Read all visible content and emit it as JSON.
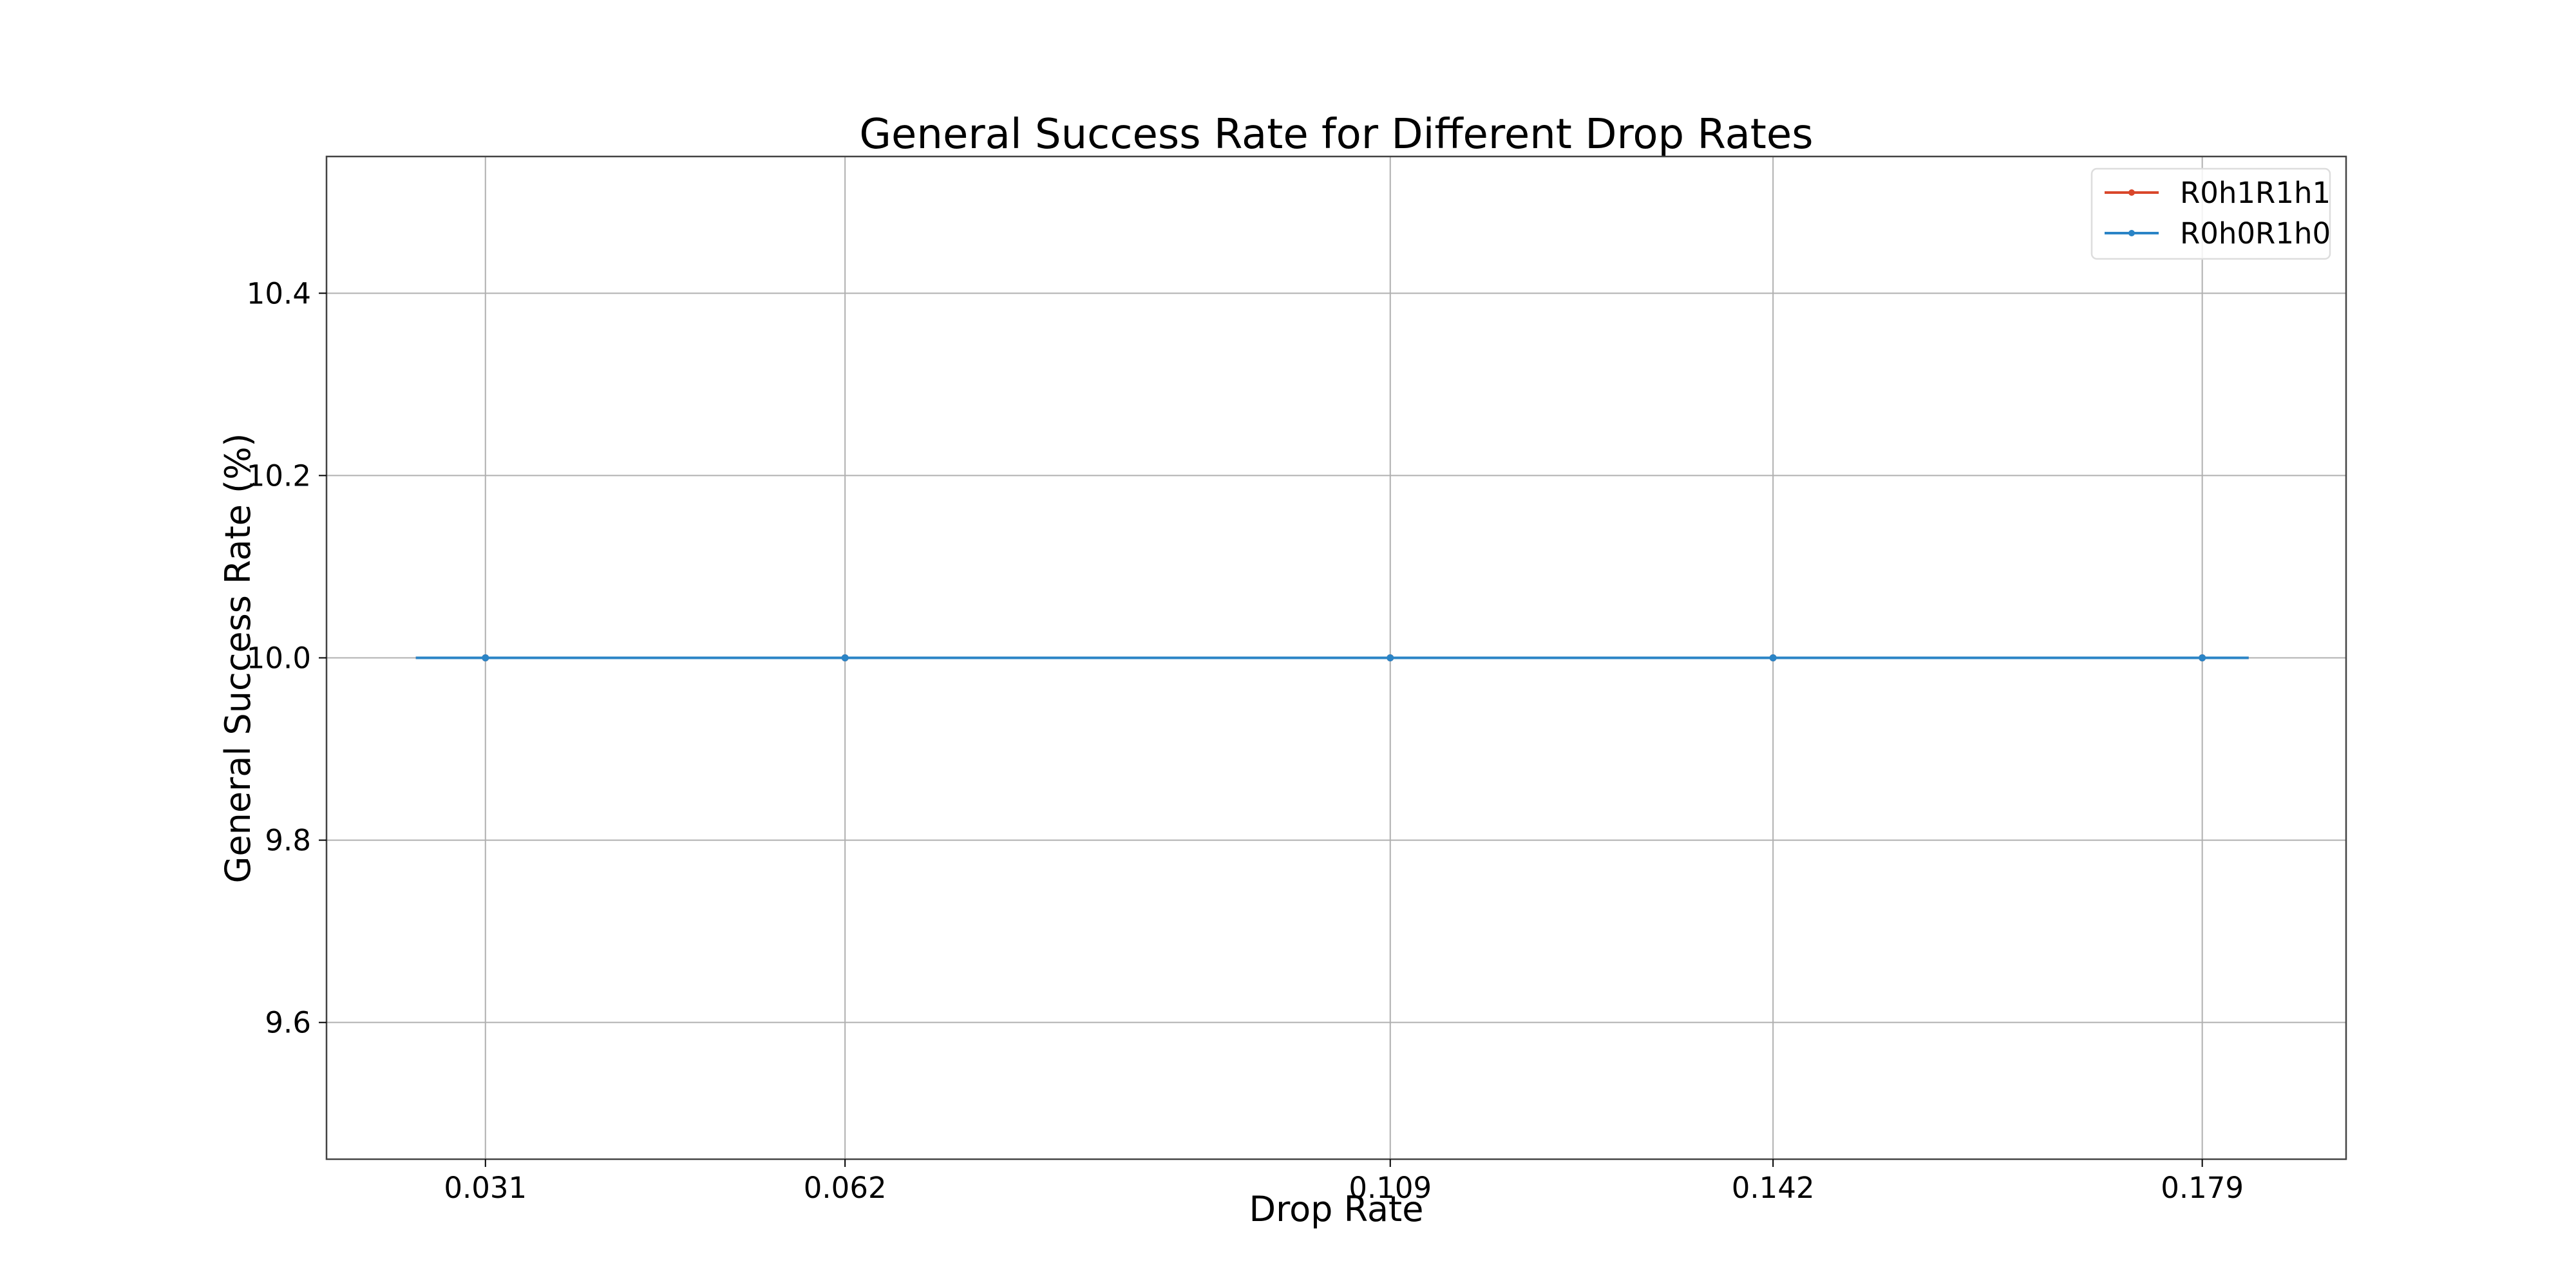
{
  "chart_data": {
    "type": "line",
    "title": "General Success Rate for Different Drop Rates",
    "xlabel": "Drop Rate",
    "ylabel": "General Success Rate (%)",
    "x_ticks": [
      "0.031",
      "0.062",
      "0.109",
      "0.142",
      "0.179"
    ],
    "x": [
      0.031,
      0.062,
      0.109,
      0.142,
      0.179
    ],
    "xlim": [
      0.0173,
      0.1914
    ],
    "y_ticks": [
      "9.6",
      "9.8",
      "10.0",
      "10.2",
      "10.4"
    ],
    "ylim": [
      9.45,
      10.55
    ],
    "grid": true,
    "legend_position": "top-right",
    "series": [
      {
        "name": "R0h1R1h1",
        "color": "#d9472b",
        "x": [
          0.025,
          0.031,
          0.062,
          0.109,
          0.142,
          0.179,
          0.183
        ],
        "values": [
          10.0,
          10.0,
          10.0,
          10.0,
          10.0,
          10.0,
          10.0
        ],
        "markers": [
          false,
          true,
          true,
          true,
          true,
          true,
          false
        ]
      },
      {
        "name": "R0h0R1h0",
        "color": "#2a84c6",
        "x": [
          0.025,
          0.031,
          0.062,
          0.109,
          0.142,
          0.179,
          0.183
        ],
        "values": [
          10.0,
          10.0,
          10.0,
          10.0,
          10.0,
          10.0,
          10.0
        ],
        "markers": [
          false,
          true,
          true,
          true,
          true,
          true,
          false
        ]
      }
    ]
  }
}
